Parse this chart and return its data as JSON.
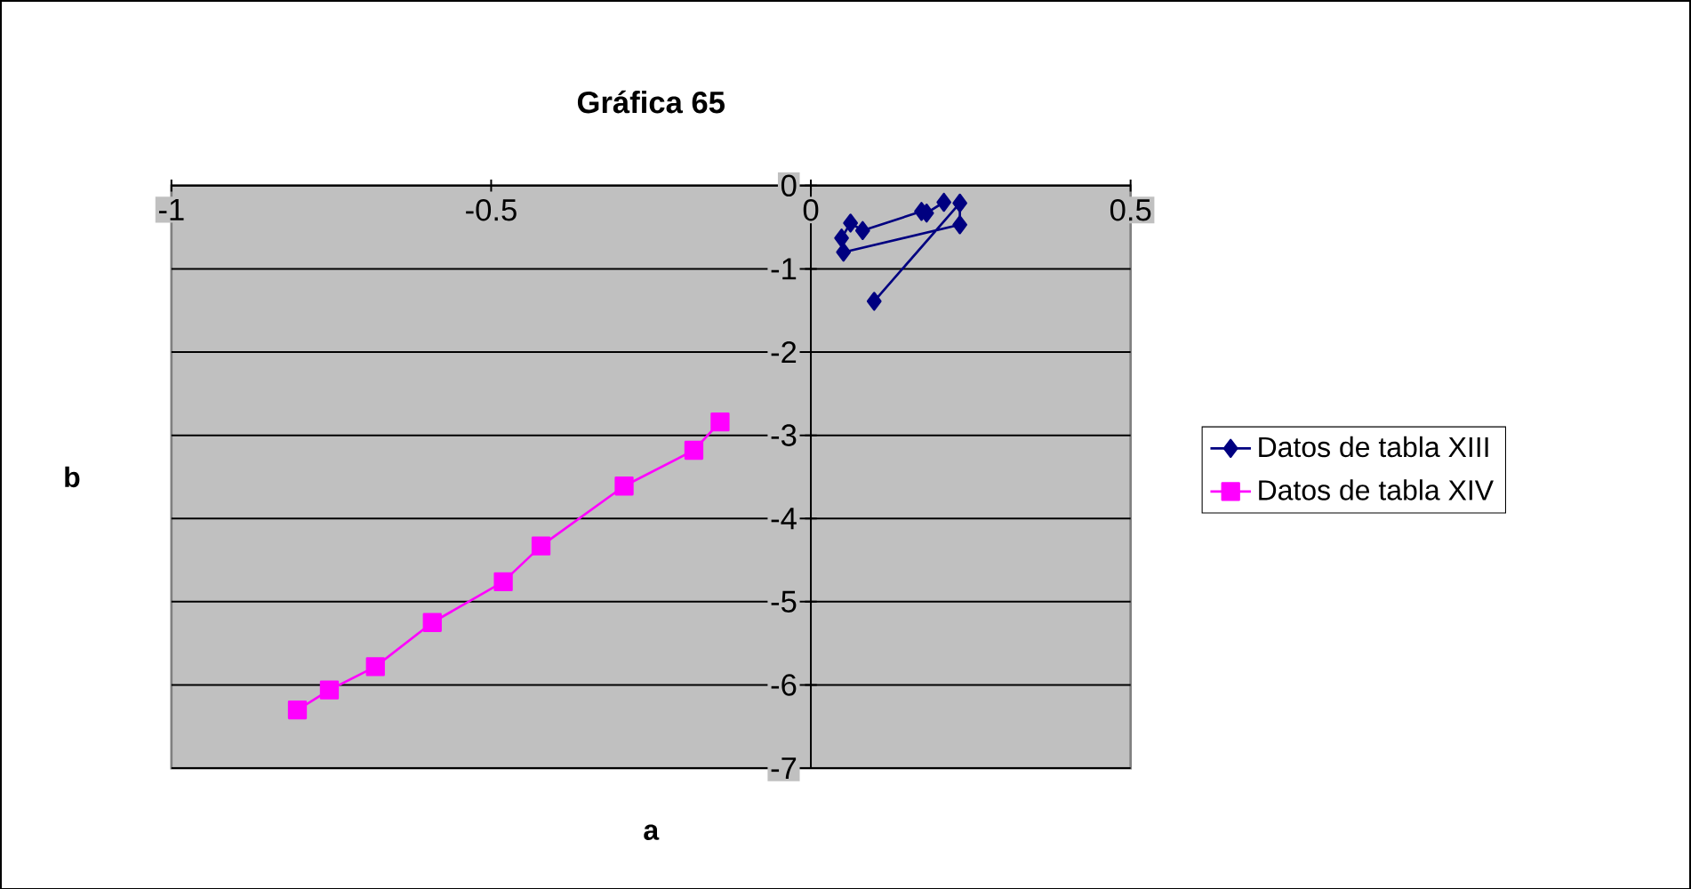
{
  "chart_data": {
    "type": "line",
    "title": "Gráfica 65",
    "xlabel": "a",
    "ylabel": "b",
    "xlim": [
      -1,
      0.5
    ],
    "ylim": [
      -7,
      0
    ],
    "xticks": [
      -1,
      -0.5,
      0,
      0.5
    ],
    "yticks": [
      0,
      -1,
      -2,
      -3,
      -4,
      -5,
      -6,
      -7
    ],
    "grid": "y",
    "legend": "right",
    "series": [
      {
        "name": "Datos de tabla XIII",
        "color": "#000080",
        "marker": "diamond",
        "x": [
          0.099,
          0.233,
          0.233,
          0.051,
          0.048,
          0.062,
          0.081,
          0.173,
          0.181,
          0.208
        ],
        "values": [
          -1.39,
          -0.21,
          -0.47,
          -0.8,
          -0.63,
          -0.45,
          -0.54,
          -0.31,
          -0.33,
          -0.2
        ]
      },
      {
        "name": "Datos de tabla XIV",
        "color": "#ff00ff",
        "marker": "square",
        "x": [
          -0.803,
          -0.753,
          -0.681,
          -0.592,
          -0.481,
          -0.422,
          -0.292,
          -0.183,
          -0.142
        ],
        "values": [
          -6.3,
          -6.06,
          -5.78,
          -5.25,
          -4.76,
          -4.33,
          -3.61,
          -3.18,
          -2.84
        ]
      }
    ]
  }
}
